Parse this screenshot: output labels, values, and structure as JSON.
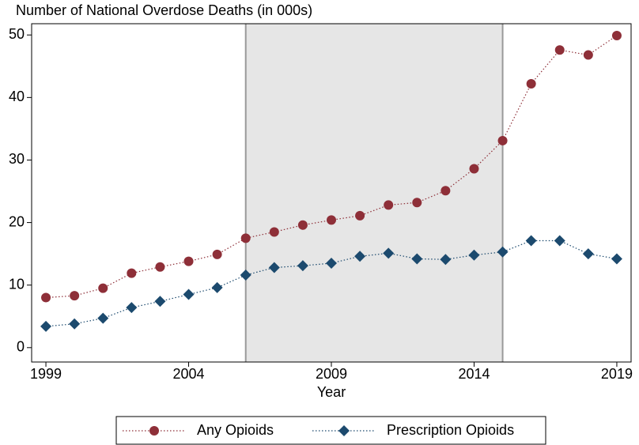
{
  "chart_data": {
    "type": "line",
    "title": "Number of National Overdose Deaths (in 000s)",
    "x_label": "Year",
    "x": [
      1999,
      2000,
      2001,
      2002,
      2003,
      2004,
      2005,
      2006,
      2007,
      2008,
      2009,
      2010,
      2011,
      2012,
      2013,
      2014,
      2015,
      2016,
      2017,
      2018,
      2019
    ],
    "series": [
      {
        "name": "Any Opioids",
        "color": "#8e2f38",
        "marker": "circle",
        "values": [
          8.0,
          8.3,
          9.5,
          11.9,
          12.9,
          13.8,
          14.9,
          17.5,
          18.5,
          19.6,
          20.4,
          21.1,
          22.8,
          23.2,
          25.1,
          28.6,
          33.1,
          42.2,
          47.6,
          46.8,
          49.9
        ]
      },
      {
        "name": "Prescription Opioids",
        "color": "#1c4a6e",
        "marker": "diamond",
        "values": [
          3.4,
          3.8,
          4.7,
          6.4,
          7.4,
          8.5,
          9.6,
          11.6,
          12.8,
          13.1,
          13.5,
          14.6,
          15.1,
          14.2,
          14.1,
          14.8,
          15.3,
          17.1,
          17.1,
          15.0,
          14.2
        ]
      }
    ],
    "shaded_x": [
      2006,
      2015
    ],
    "xlim": [
      1998.5,
      2019.5
    ],
    "xticks": [
      1999,
      2004,
      2009,
      2014,
      2019
    ],
    "ylim": [
      -2.3,
      51.8
    ],
    "yticks": [
      0,
      10,
      20,
      30,
      40,
      50
    ]
  }
}
